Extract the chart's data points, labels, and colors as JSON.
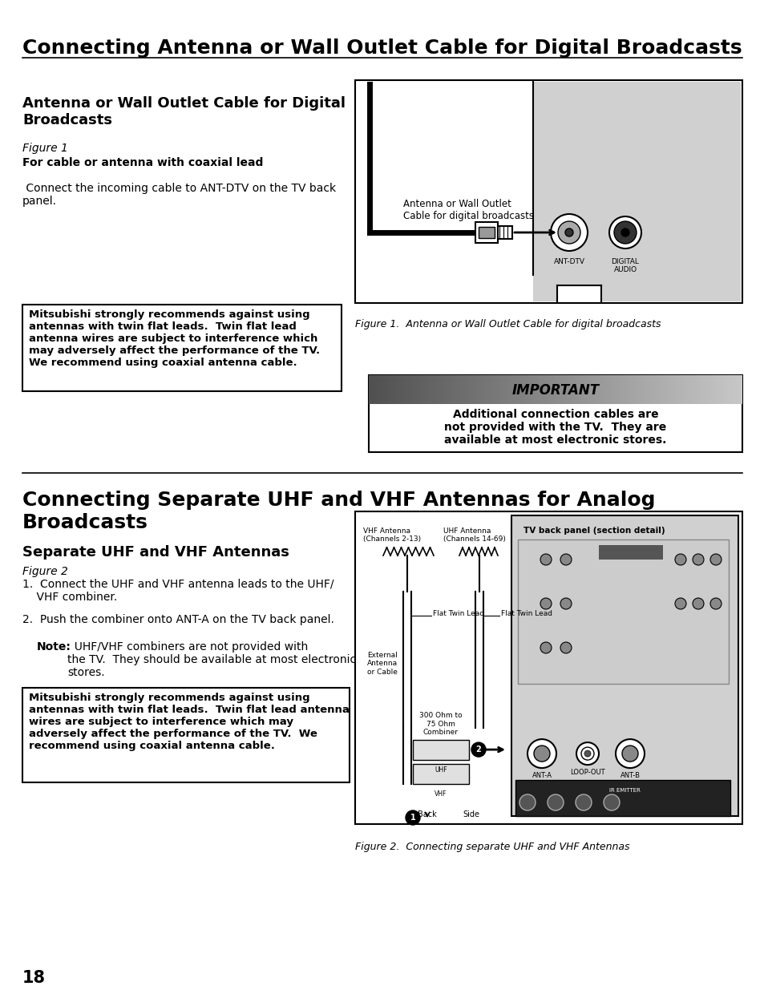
{
  "page_title": "Connecting Antenna or Wall Outlet Cable for Digital Broadcasts",
  "section1_title": "Antenna or Wall Outlet Cable for Digital\nBroadcasts",
  "section1_fig": "Figure 1",
  "section1_subtitle": "For cable or antenna with coaxial lead",
  "section1_body": " Connect the incoming cable to ANT-DTV on the TV back\npanel.",
  "warning1_line1": "Mitsubishi strongly recommends against using",
  "warning1_line2": "antennas with twin flat leads.  Twin flat lead",
  "warning1_line3": "antenna wires are subject to interference which",
  "warning1_line4": "may adversely affect the performance of the TV.",
  "warning1_line5": "We recommend using coaxial antenna cable.",
  "fig1_label": "Antenna or Wall Outlet\nCable for digital broadcasts",
  "fig1_caption": "Figure 1.  Antenna or Wall Outlet Cable for digital broadcasts",
  "important_title": "IMPORTANT",
  "important_body": "Additional connection cables are\nnot provided with the TV.  They are\navailable at most electronic stores.",
  "section2_title": "Connecting Separate UHF and VHF Antennas for Analog\nBroadcasts",
  "section2_sub_title": "Separate UHF and VHF Antennas",
  "section2_fig": "Figure 2",
  "section2_body1": "1.  Connect the UHF and VHF antenna leads to the UHF/\n    VHF combiner.",
  "section2_body2": "2.  Push the combiner onto ANT-A on the TV back panel.",
  "section2_note_bold": "Note:",
  "section2_note_rest": "  UHF/VHF combiners are not provided with\nthe TV.  They should be available at most electronic\nstores.",
  "warning2_line1": "Mitsubishi strongly recommends against using",
  "warning2_line2": "antennas with twin flat leads.  Twin flat lead antenna",
  "warning2_line3": "wires are subject to interference which may",
  "warning2_line4": "adversely affect the performance of the TV.  We",
  "warning2_line5": "recommend using coaxial antenna cable.",
  "fig2_caption": "Figure 2.  Connecting separate UHF and VHF Antennas",
  "page_number": "18",
  "bg_color": "#ffffff",
  "fig_bg": "#d0d0d0",
  "tv_panel_bg": "#b8b8b8",
  "vhf_label": "VHF Antenna\n(Channels 2-13)",
  "uhf_label": "UHF Antenna\n(Channels 14-69)",
  "tv_detail_label": "TV back panel (section detail)",
  "flat_twin_lead": "Flat Twin Lead",
  "external_cable": "External\nAntenna\nor Cable",
  "combiner_label": "300 Ohm to\n75 Ohm\nCombiner",
  "port_labels": [
    "ANT-A",
    "LOOP-OUT",
    "ANT-B"
  ],
  "back_label": "Back",
  "side_label": "Side"
}
